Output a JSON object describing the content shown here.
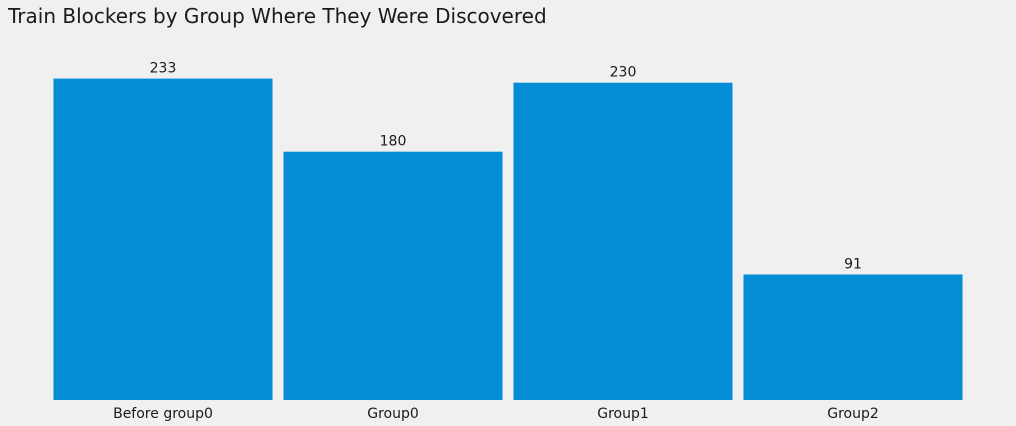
{
  "chart_data": {
    "type": "bar",
    "title": "Train Blockers by Group Where They Were Discovered",
    "categories": [
      "Before group0",
      "Group0",
      "Group1",
      "Group2"
    ],
    "values": [
      233,
      180,
      230,
      91
    ],
    "data_labels": [
      "233",
      "180",
      "230",
      "91"
    ],
    "ylim": [
      0,
      245
    ],
    "grid": false,
    "bar_color": "#028dd5",
    "background_color": "#f0f0f0"
  }
}
